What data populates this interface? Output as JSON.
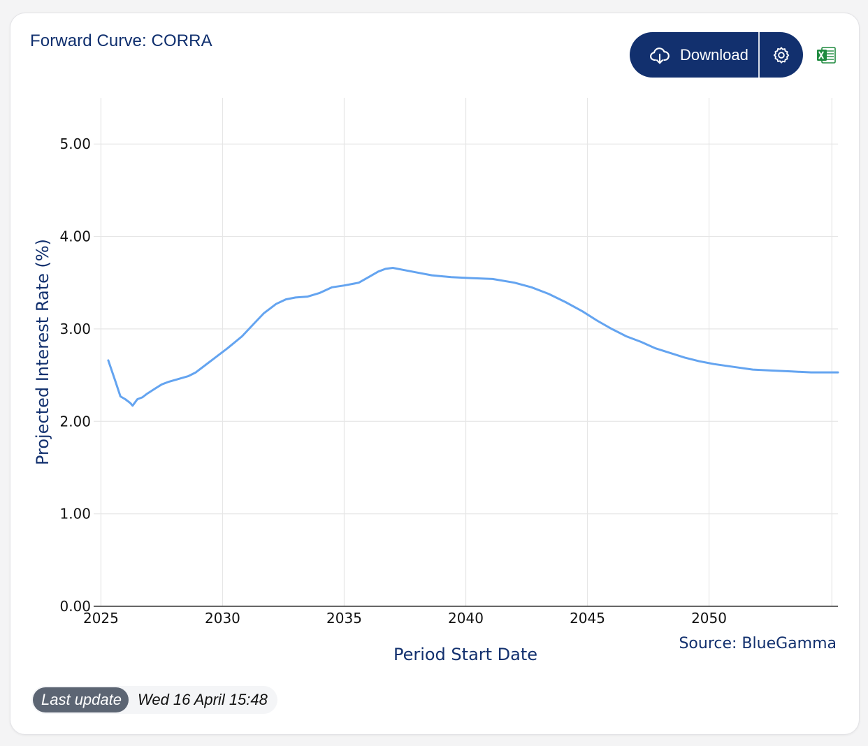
{
  "card": {
    "title": "Forward Curve: CORRA",
    "download_label": "Download",
    "download_icon": "cloud-download-icon",
    "settings_icon": "gear-icon",
    "excel_icon": "excel-icon",
    "source_text": "Source: BlueGamma",
    "last_update_label": "Last update",
    "last_update_value": "Wed 16 April 15:48"
  },
  "colors": {
    "brand": "#12306e",
    "line": "#64a4f0",
    "grid": "#e6e6e6",
    "badge": "#5c6573",
    "excel": "#1f8a3f"
  },
  "chart_data": {
    "type": "line",
    "title": "",
    "xlabel": "Period Start Date",
    "ylabel": "Projected Interest Rate (%)",
    "xlim": [
      2024.7,
      2055.3
    ],
    "ylim": [
      0,
      5.5
    ],
    "x_ticks": [
      2025,
      2030,
      2035,
      2040,
      2045,
      2050
    ],
    "x_tick_labels": [
      "2025",
      "2030",
      "2035",
      "2040",
      "2045",
      "2050"
    ],
    "y_ticks": [
      0,
      1,
      2,
      3,
      4,
      5
    ],
    "y_tick_labels": [
      "0.00",
      "1.00",
      "2.00",
      "3.00",
      "4.00",
      "5.00"
    ],
    "grid": true,
    "legend": false,
    "series": [
      {
        "x": [
          2025.3,
          2025.6,
          2025.8,
          2026.0,
          2026.2,
          2026.3,
          2026.5,
          2026.7,
          2026.9,
          2027.2,
          2027.5,
          2027.8,
          2028.2,
          2028.6,
          2028.9,
          2029.3,
          2029.7,
          2030.2,
          2030.8,
          2031.3,
          2031.7,
          2032.2,
          2032.6,
          2033.0,
          2033.5,
          2034.0,
          2034.5,
          2035.0,
          2035.6,
          2036.0,
          2036.4,
          2036.7,
          2037.0,
          2037.4,
          2038.0,
          2038.6,
          2039.4,
          2040.2,
          2041.1,
          2042.0,
          2042.7,
          2043.4,
          2044.1,
          2044.8,
          2045.4,
          2046.0,
          2046.6,
          2047.2,
          2047.8,
          2048.4,
          2049.0,
          2049.6,
          2050.2,
          2051.0,
          2051.8,
          2052.6,
          2053.4,
          2054.2,
          2055.3
        ],
        "y": [
          2.66,
          2.43,
          2.27,
          2.24,
          2.2,
          2.17,
          2.24,
          2.26,
          2.3,
          2.35,
          2.4,
          2.43,
          2.46,
          2.49,
          2.53,
          2.61,
          2.69,
          2.79,
          2.92,
          3.06,
          3.17,
          3.27,
          3.32,
          3.34,
          3.35,
          3.39,
          3.45,
          3.47,
          3.5,
          3.56,
          3.62,
          3.65,
          3.66,
          3.64,
          3.61,
          3.58,
          3.56,
          3.55,
          3.54,
          3.5,
          3.45,
          3.38,
          3.29,
          3.19,
          3.09,
          3.0,
          2.92,
          2.86,
          2.79,
          2.74,
          2.69,
          2.65,
          2.62,
          2.59,
          2.56,
          2.55,
          2.54,
          2.53,
          2.53
        ]
      }
    ],
    "annotation": "Source: BlueGamma"
  }
}
